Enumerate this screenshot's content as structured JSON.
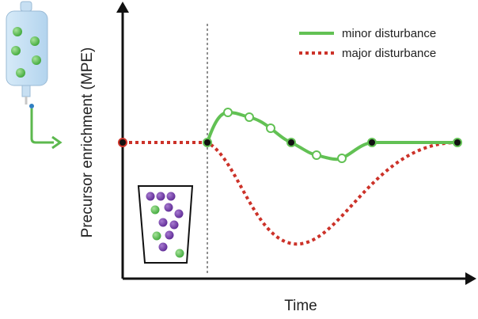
{
  "axes": {
    "y_label": "Precursor enrichment (MPE)",
    "x_label": "Time"
  },
  "legend": [
    {
      "label": "minor disturbance"
    },
    {
      "label": "major disturbance"
    }
  ]
}
